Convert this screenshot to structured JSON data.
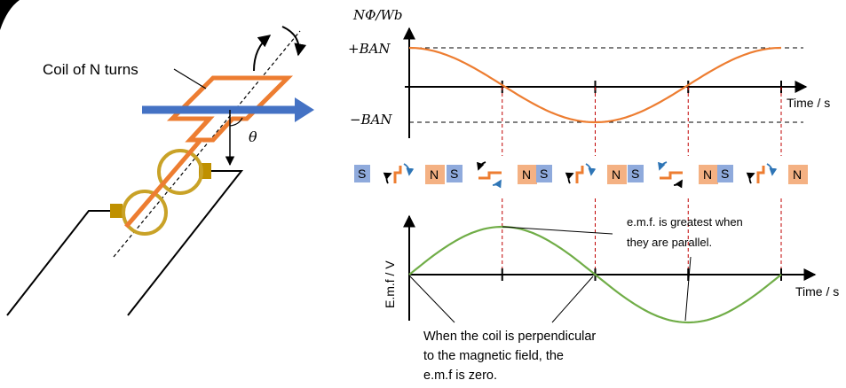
{
  "coil_diagram": {
    "label": "Coil of N turns",
    "angle_symbol": "θ"
  },
  "flux_graph": {
    "ylabel": "NΦ/Wb",
    "top_value": "+BAN",
    "bottom_value": "−BAN",
    "xlabel": "Time / s"
  },
  "orientation_row": {
    "south_label": "S",
    "north_label": "N",
    "count": 5
  },
  "emf_graph": {
    "ylabel": "E.m.f / V",
    "xlabel": "Time / s",
    "annotation_parallel": [
      "e.m.f. is greatest when",
      "they are parallel."
    ],
    "annotation_perpendicular": [
      "When the coil is perpendicular",
      "to the magnetic field, the",
      "e.m.f is zero."
    ]
  },
  "colors": {
    "flux_curve": "#ED7D31",
    "emf_curve": "#70AD47",
    "field_arrow": "#4472C4",
    "coil": "#ED7D31",
    "slip_ring": "#C9A227",
    "brush": "#BF9000",
    "pole_south": "#8FAADC",
    "pole_north": "#F4B183",
    "guide_line": "#C00000"
  }
}
